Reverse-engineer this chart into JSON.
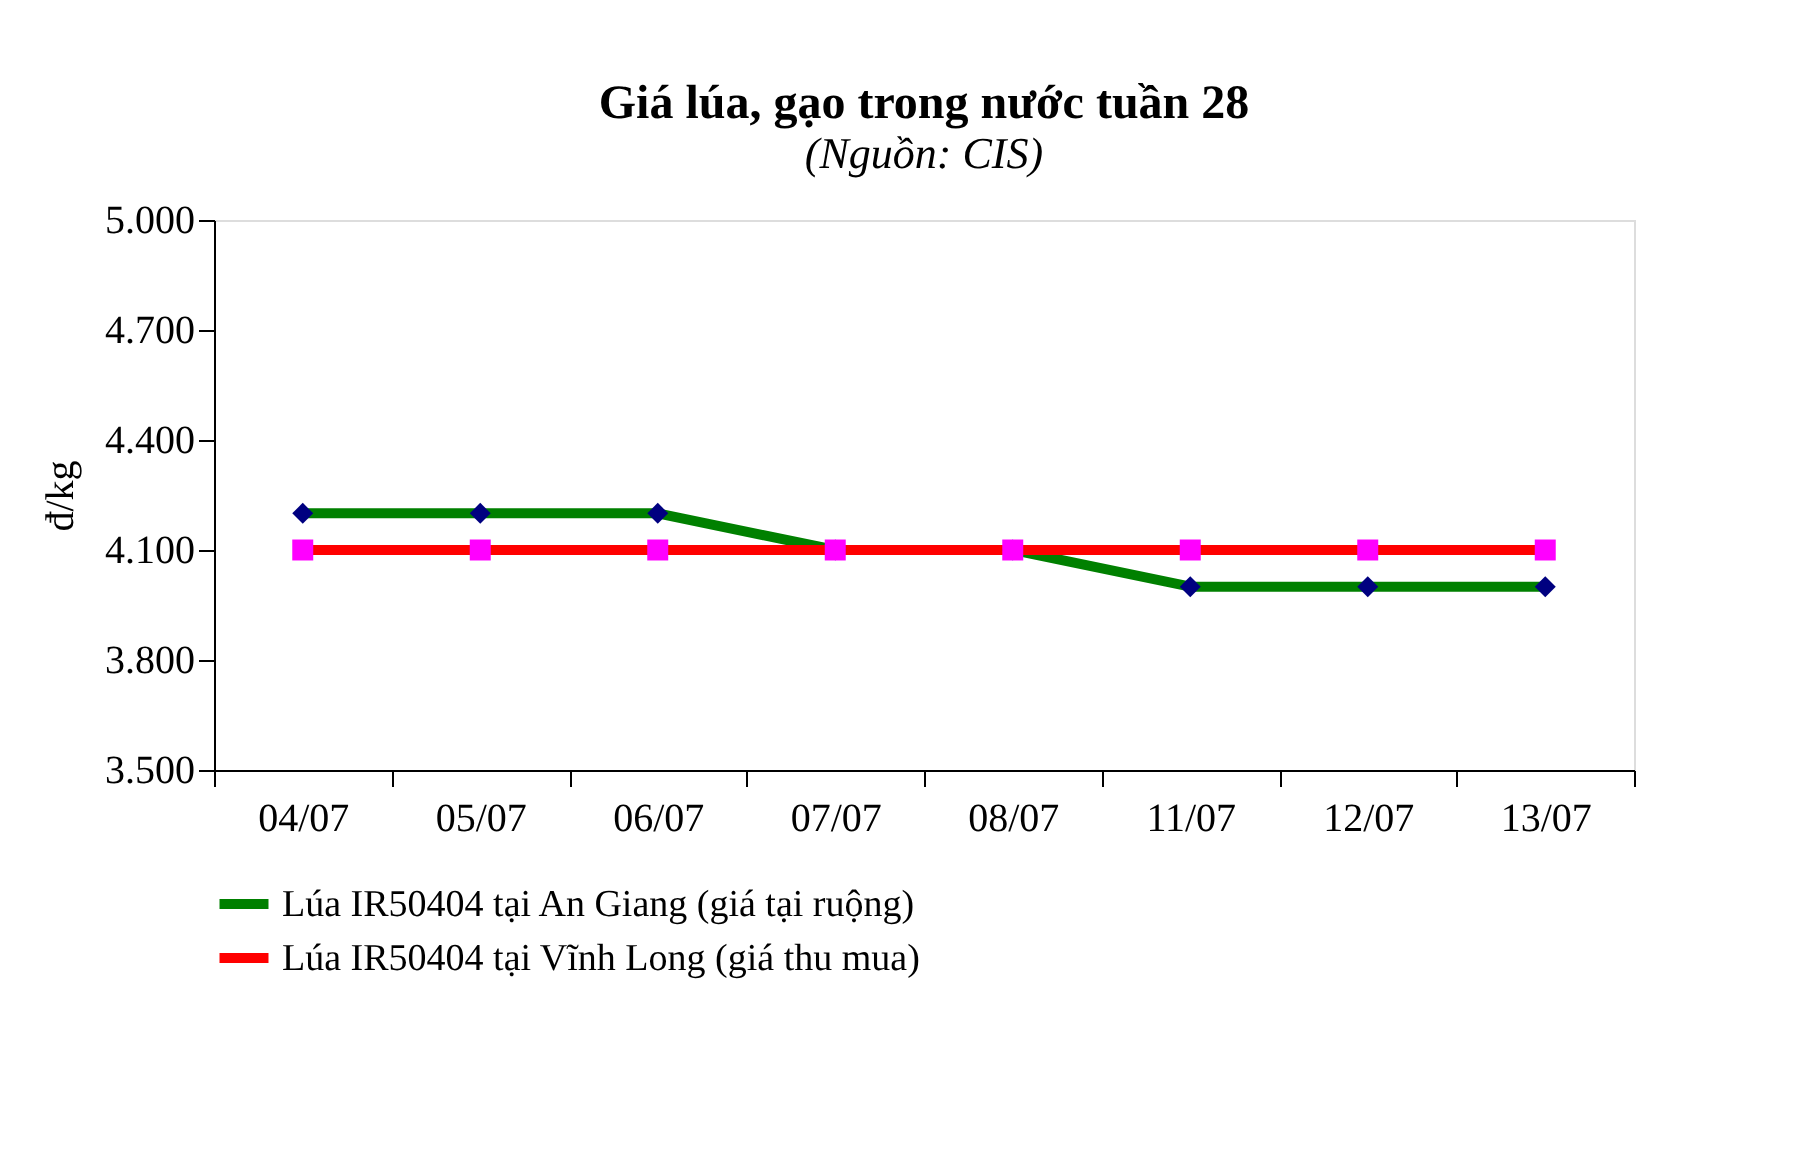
{
  "chart_data": {
    "type": "line",
    "title": "Giá lúa, gạo trong nước tuần 28",
    "subtitle": "(Nguồn: CIS)",
    "ylabel": "đ/kg",
    "categories": [
      "04/07",
      "05/07",
      "06/07",
      "07/07",
      "08/07",
      "11/07",
      "12/07",
      "13/07"
    ],
    "series": [
      {
        "name": "Lúa IR50404 tại An Giang (giá tại ruộng)",
        "color": "#008000",
        "marker": "diamond",
        "values": [
          4200,
          4200,
          4200,
          4100,
          4100,
          4000,
          4000,
          4000
        ]
      },
      {
        "name": "Lúa IR50404 tại Vĩnh Long (giá thu mua)",
        "color": "#ff0000",
        "marker": "square",
        "values": [
          4100,
          4100,
          4100,
          4100,
          4100,
          4100,
          4100,
          4100
        ]
      }
    ],
    "ylim": [
      3500,
      5000
    ],
    "yticks": [
      {
        "value": 3500,
        "label": "3.500"
      },
      {
        "value": 3800,
        "label": "3.800"
      },
      {
        "value": 4100,
        "label": "4.100"
      },
      {
        "value": 4400,
        "label": "4.400"
      },
      {
        "value": 4700,
        "label": "4.700"
      },
      {
        "value": 5000,
        "label": "5.000"
      }
    ],
    "grid": false,
    "legend": "bottom",
    "line_style": "solid"
  }
}
